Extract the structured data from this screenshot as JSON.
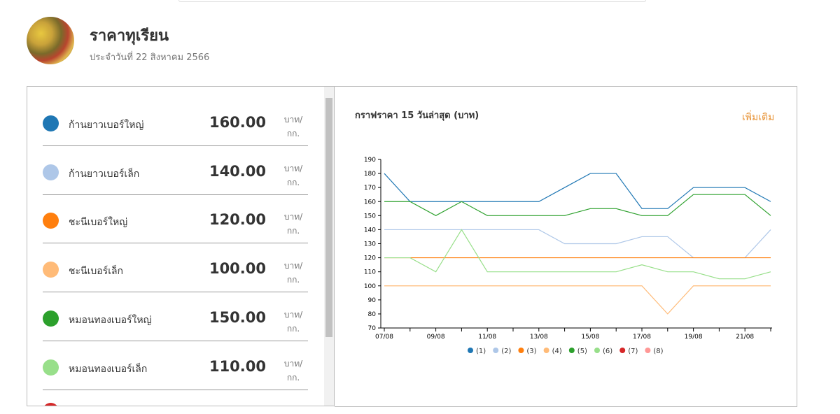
{
  "header": {
    "title": "ราคาทุเรียน",
    "subtitle": "ประจำวันที่ 22 สิงหาคม 2566"
  },
  "list": [
    {
      "name": "ก้านยาวเบอร์ใหญ่",
      "price": "160.00",
      "unit": [
        "บาท/",
        "กก."
      ],
      "color": "#1f77b4"
    },
    {
      "name": "ก้านยาวเบอร์เล็ก",
      "price": "140.00",
      "unit": [
        "บาท/",
        "กก."
      ],
      "color": "#aec7e8"
    },
    {
      "name": "ชะนีเบอร์ใหญ่",
      "price": "120.00",
      "unit": [
        "บาท/",
        "กก."
      ],
      "color": "#ff7f0e"
    },
    {
      "name": "ชะนีเบอร์เล็ก",
      "price": "100.00",
      "unit": [
        "บาท/",
        "กก."
      ],
      "color": "#ffbb78"
    },
    {
      "name": "หมอนทองเบอร์ใหญ่",
      "price": "150.00",
      "unit": [
        "บาท/",
        "กก."
      ],
      "color": "#2ca02c"
    },
    {
      "name": "หมอนทองเบอร์เล็ก",
      "price": "110.00",
      "unit": [
        "บาท/",
        "กก."
      ],
      "color": "#98df8a"
    }
  ],
  "more_link": "เพิ่มเติม",
  "chart_data": {
    "type": "line",
    "title": "กราฟราคา 15 วันล่าสุด (บาท)",
    "categories": [
      "07/08",
      null,
      "09/08",
      null,
      "11/08",
      null,
      "13/08",
      null,
      "15/08",
      null,
      "17/08",
      null,
      "19/08",
      null,
      "21/08",
      null
    ],
    "ylim": [
      70,
      190
    ],
    "yticks": [
      70,
      80,
      90,
      100,
      110,
      120,
      130,
      140,
      150,
      160,
      170,
      180,
      190
    ],
    "series": [
      {
        "name": "(1)",
        "color": "#1f77b4",
        "values": [
          180,
          160,
          160,
          160,
          160,
          160,
          160,
          170,
          180,
          180,
          155,
          155,
          170,
          170,
          170,
          160
        ]
      },
      {
        "name": "(2)",
        "color": "#aec7e8",
        "values": [
          140,
          140,
          140,
          140,
          140,
          140,
          140,
          130,
          130,
          130,
          135,
          135,
          120,
          120,
          120,
          140
        ]
      },
      {
        "name": "(3)",
        "color": "#ff7f0e",
        "values": [
          120,
          120,
          120,
          120,
          120,
          120,
          120,
          120,
          120,
          120,
          120,
          120,
          120,
          120,
          120,
          120
        ]
      },
      {
        "name": "(4)",
        "color": "#ffbb78",
        "values": [
          100,
          100,
          100,
          100,
          100,
          100,
          100,
          100,
          100,
          100,
          100,
          80,
          100,
          100,
          100,
          100
        ]
      },
      {
        "name": "(5)",
        "color": "#2ca02c",
        "values": [
          160,
          160,
          150,
          160,
          150,
          150,
          150,
          150,
          155,
          155,
          150,
          150,
          165,
          165,
          165,
          150
        ]
      },
      {
        "name": "(6)",
        "color": "#98df8a",
        "values": [
          120,
          120,
          110,
          140,
          110,
          110,
          110,
          110,
          110,
          110,
          115,
          110,
          110,
          105,
          105,
          110
        ]
      },
      {
        "name": "(7)",
        "color": "#d62728",
        "values": [
          null,
          null,
          null,
          null,
          null,
          null,
          null,
          null,
          null,
          null,
          null,
          null,
          null,
          null,
          null,
          null
        ]
      },
      {
        "name": "(8)",
        "color": "#ff9896",
        "values": [
          null,
          null,
          null,
          null,
          null,
          null,
          null,
          null,
          null,
          null,
          null,
          null,
          null,
          null,
          null,
          null
        ]
      }
    ]
  }
}
